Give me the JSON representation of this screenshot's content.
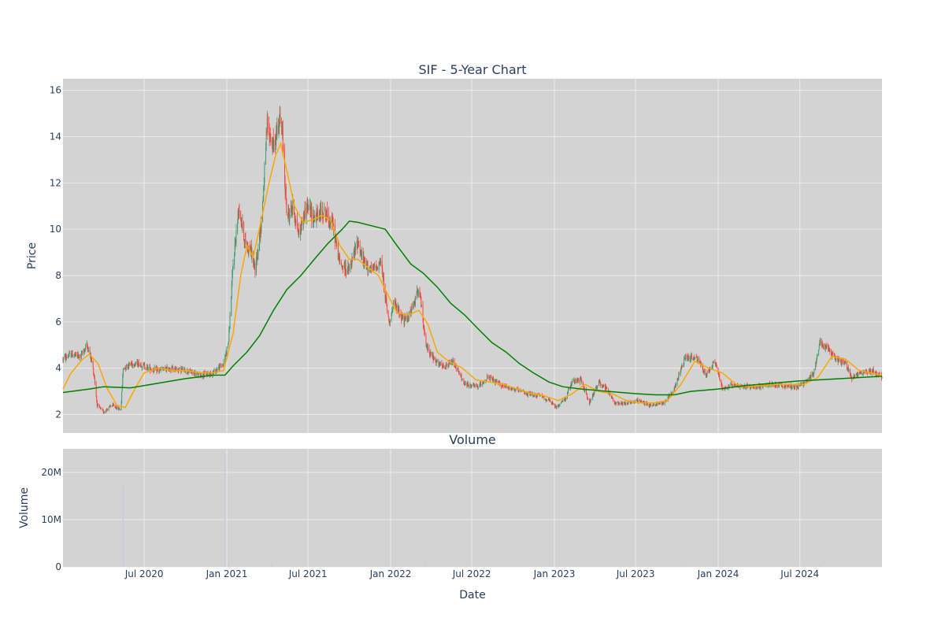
{
  "colors": {
    "plot_bg": "#d3d3d3",
    "grid": "#ebebeb",
    "text": "#2a3f5f",
    "candle_up": "#3d9970",
    "candle_down": "#ff4136",
    "ma_short": "#ffa500",
    "ma_long": "#008000",
    "volume_bar": "#c8c8e0"
  },
  "chart_data": [
    {
      "type": "candlestick",
      "title": "SIF - 5-Year Chart",
      "xlabel": "",
      "ylabel": "Price",
      "xlim": [
        "2020-01-02",
        "2024-12-31"
      ],
      "ylim": [
        1.2,
        16.5
      ],
      "yticks": [
        2,
        4,
        6,
        8,
        10,
        12,
        14,
        16
      ],
      "grid": true,
      "legend": "none",
      "price_path": [
        [
          "2020-01-02",
          4.4
        ],
        [
          "2020-01-20",
          4.6
        ],
        [
          "2020-02-10",
          4.5
        ],
        [
          "2020-02-24",
          5.0
        ],
        [
          "2020-03-05",
          4.4
        ],
        [
          "2020-03-12",
          3.6
        ],
        [
          "2020-03-18",
          2.4
        ],
        [
          "2020-04-01",
          2.1
        ],
        [
          "2020-04-20",
          2.4
        ],
        [
          "2020-05-10",
          2.2
        ],
        [
          "2020-05-15",
          4.0
        ],
        [
          "2020-06-01",
          4.2
        ],
        [
          "2020-06-20",
          4.2
        ],
        [
          "2020-07-10",
          4.0
        ],
        [
          "2020-08-01",
          3.9
        ],
        [
          "2020-09-01",
          4.0
        ],
        [
          "2020-10-01",
          3.9
        ],
        [
          "2020-11-01",
          3.7
        ],
        [
          "2020-12-01",
          3.8
        ],
        [
          "2020-12-25",
          4.2
        ],
        [
          "2021-01-05",
          5.2
        ],
        [
          "2021-01-15",
          8.5
        ],
        [
          "2021-01-28",
          11.0
        ],
        [
          "2021-02-10",
          9.5
        ],
        [
          "2021-02-25",
          9.0
        ],
        [
          "2021-03-05",
          8.2
        ],
        [
          "2021-03-20",
          10.5
        ],
        [
          "2021-04-01",
          14.5
        ],
        [
          "2021-04-15",
          13.5
        ],
        [
          "2021-04-28",
          14.8
        ],
        [
          "2021-05-05",
          14.0
        ],
        [
          "2021-05-15",
          10.5
        ],
        [
          "2021-05-28",
          11.0
        ],
        [
          "2021-06-10",
          9.8
        ],
        [
          "2021-06-28",
          11.0
        ],
        [
          "2021-07-15",
          10.5
        ],
        [
          "2021-08-05",
          10.8
        ],
        [
          "2021-08-25",
          10.2
        ],
        [
          "2021-09-10",
          8.5
        ],
        [
          "2021-10-01",
          8.2
        ],
        [
          "2021-10-20",
          9.5
        ],
        [
          "2021-11-01",
          8.6
        ],
        [
          "2021-11-20",
          8.2
        ],
        [
          "2021-12-10",
          8.6
        ],
        [
          "2021-12-28",
          6.0
        ],
        [
          "2022-01-10",
          6.8
        ],
        [
          "2022-02-01",
          6.0
        ],
        [
          "2022-02-20",
          6.6
        ],
        [
          "2022-03-05",
          7.6
        ],
        [
          "2022-03-20",
          5.0
        ],
        [
          "2022-04-10",
          4.3
        ],
        [
          "2022-05-01",
          4.0
        ],
        [
          "2022-05-20",
          4.3
        ],
        [
          "2022-06-15",
          3.3
        ],
        [
          "2022-07-15",
          3.2
        ],
        [
          "2022-08-05",
          3.6
        ],
        [
          "2022-09-01",
          3.3
        ],
        [
          "2022-10-01",
          3.1
        ],
        [
          "2022-11-01",
          2.9
        ],
        [
          "2022-12-01",
          2.8
        ],
        [
          "2022-12-20",
          2.6
        ],
        [
          "2023-01-05",
          2.3
        ],
        [
          "2023-01-25",
          2.7
        ],
        [
          "2023-02-10",
          3.4
        ],
        [
          "2023-03-01",
          3.5
        ],
        [
          "2023-03-20",
          2.5
        ],
        [
          "2023-04-10",
          3.4
        ],
        [
          "2023-04-28",
          3.1
        ],
        [
          "2023-05-15",
          2.5
        ],
        [
          "2023-06-10",
          2.5
        ],
        [
          "2023-07-10",
          2.6
        ],
        [
          "2023-08-01",
          2.4
        ],
        [
          "2023-09-01",
          2.5
        ],
        [
          "2023-09-25",
          3.1
        ],
        [
          "2023-10-20",
          4.5
        ],
        [
          "2023-11-15",
          4.4
        ],
        [
          "2023-12-05",
          3.7
        ],
        [
          "2023-12-25",
          4.3
        ],
        [
          "2024-01-10",
          3.1
        ],
        [
          "2024-02-01",
          3.3
        ],
        [
          "2024-03-01",
          3.2
        ],
        [
          "2024-04-01",
          3.2
        ],
        [
          "2024-05-01",
          3.3
        ],
        [
          "2024-06-01",
          3.2
        ],
        [
          "2024-06-25",
          3.2
        ],
        [
          "2024-07-15",
          3.4
        ],
        [
          "2024-08-01",
          3.8
        ],
        [
          "2024-08-15",
          5.2
        ],
        [
          "2024-09-01",
          4.8
        ],
        [
          "2024-09-20",
          4.4
        ],
        [
          "2024-10-10",
          4.2
        ],
        [
          "2024-10-25",
          3.6
        ],
        [
          "2024-11-15",
          3.8
        ],
        [
          "2024-12-10",
          3.9
        ],
        [
          "2024-12-31",
          3.6
        ]
      ],
      "ma_short": [
        [
          "2020-01-02",
          3.1
        ],
        [
          "2020-01-20",
          3.8
        ],
        [
          "2020-02-15",
          4.4
        ],
        [
          "2020-03-01",
          4.6
        ],
        [
          "2020-03-20",
          4.2
        ],
        [
          "2020-04-10",
          3.1
        ],
        [
          "2020-05-01",
          2.4
        ],
        [
          "2020-05-20",
          2.3
        ],
        [
          "2020-06-10",
          3.1
        ],
        [
          "2020-07-01",
          3.8
        ],
        [
          "2020-08-01",
          4.0
        ],
        [
          "2020-09-01",
          3.9
        ],
        [
          "2020-10-01",
          3.9
        ],
        [
          "2020-11-01",
          3.8
        ],
        [
          "2020-12-01",
          3.8
        ],
        [
          "2020-12-25",
          3.9
        ],
        [
          "2021-01-15",
          5.5
        ],
        [
          "2021-02-01",
          8.0
        ],
        [
          "2021-02-15",
          9.3
        ],
        [
          "2021-03-01",
          8.8
        ],
        [
          "2021-03-20",
          10.5
        ],
        [
          "2021-04-05",
          12.0
        ],
        [
          "2021-04-20",
          13.2
        ],
        [
          "2021-05-01",
          13.7
        ],
        [
          "2021-05-15",
          12.5
        ],
        [
          "2021-06-01",
          11.0
        ],
        [
          "2021-06-20",
          10.3
        ],
        [
          "2021-07-10",
          10.4
        ],
        [
          "2021-08-01",
          10.6
        ],
        [
          "2021-08-20",
          10.4
        ],
        [
          "2021-09-10",
          9.3
        ],
        [
          "2021-10-01",
          8.7
        ],
        [
          "2021-10-20",
          8.7
        ],
        [
          "2021-11-15",
          8.3
        ],
        [
          "2021-12-05",
          8.0
        ],
        [
          "2021-12-25",
          7.2
        ],
        [
          "2022-01-15",
          6.4
        ],
        [
          "2022-02-10",
          6.3
        ],
        [
          "2022-03-05",
          6.5
        ],
        [
          "2022-03-25",
          5.9
        ],
        [
          "2022-04-15",
          4.7
        ],
        [
          "2022-05-10",
          4.3
        ],
        [
          "2022-06-10",
          4.0
        ],
        [
          "2022-07-10",
          3.5
        ],
        [
          "2022-08-10",
          3.4
        ],
        [
          "2022-09-10",
          3.3
        ],
        [
          "2022-10-10",
          3.1
        ],
        [
          "2022-11-10",
          2.9
        ],
        [
          "2022-12-10",
          2.8
        ],
        [
          "2023-01-10",
          2.6
        ],
        [
          "2023-02-10",
          2.9
        ],
        [
          "2023-03-10",
          3.3
        ],
        [
          "2023-04-10",
          3.0
        ],
        [
          "2023-05-10",
          2.9
        ],
        [
          "2023-06-10",
          2.6
        ],
        [
          "2023-07-10",
          2.5
        ],
        [
          "2023-08-10",
          2.5
        ],
        [
          "2023-09-10",
          2.6
        ],
        [
          "2023-10-10",
          3.3
        ],
        [
          "2023-11-10",
          4.3
        ],
        [
          "2023-12-10",
          4.0
        ],
        [
          "2024-01-10",
          3.8
        ],
        [
          "2024-02-10",
          3.3
        ],
        [
          "2024-03-10",
          3.2
        ],
        [
          "2024-05-10",
          3.3
        ],
        [
          "2024-07-10",
          3.3
        ],
        [
          "2024-08-10",
          3.6
        ],
        [
          "2024-09-10",
          4.5
        ],
        [
          "2024-10-10",
          4.4
        ],
        [
          "2024-11-10",
          3.9
        ],
        [
          "2024-12-31",
          3.7
        ]
      ],
      "ma_long": [
        [
          "2020-01-02",
          2.95
        ],
        [
          "2020-03-01",
          3.1
        ],
        [
          "2020-04-01",
          3.2
        ],
        [
          "2020-06-01",
          3.15
        ],
        [
          "2020-08-01",
          3.35
        ],
        [
          "2020-10-01",
          3.55
        ],
        [
          "2020-12-01",
          3.7
        ],
        [
          "2020-12-28",
          3.7
        ],
        [
          "2021-01-15",
          4.1
        ],
        [
          "2021-02-15",
          4.7
        ],
        [
          "2021-03-15",
          5.4
        ],
        [
          "2021-04-15",
          6.5
        ],
        [
          "2021-05-15",
          7.4
        ],
        [
          "2021-06-15",
          8.0
        ],
        [
          "2021-07-15",
          8.7
        ],
        [
          "2021-08-15",
          9.4
        ],
        [
          "2021-09-15",
          10.0
        ],
        [
          "2021-10-01",
          10.35
        ],
        [
          "2021-10-20",
          10.3
        ],
        [
          "2021-11-20",
          10.15
        ],
        [
          "2021-12-20",
          10.0
        ],
        [
          "2022-01-15",
          9.3
        ],
        [
          "2022-02-15",
          8.5
        ],
        [
          "2022-03-15",
          8.1
        ],
        [
          "2022-04-15",
          7.5
        ],
        [
          "2022-05-15",
          6.8
        ],
        [
          "2022-06-15",
          6.3
        ],
        [
          "2022-07-15",
          5.7
        ],
        [
          "2022-08-15",
          5.1
        ],
        [
          "2022-09-15",
          4.7
        ],
        [
          "2022-10-15",
          4.2
        ],
        [
          "2022-11-15",
          3.8
        ],
        [
          "2022-12-20",
          3.4
        ],
        [
          "2023-01-20",
          3.2
        ],
        [
          "2023-03-01",
          3.1
        ],
        [
          "2023-05-01",
          3.0
        ],
        [
          "2023-07-01",
          2.9
        ],
        [
          "2023-08-15",
          2.85
        ],
        [
          "2023-09-25",
          2.85
        ],
        [
          "2023-11-01",
          3.0
        ],
        [
          "2024-01-01",
          3.1
        ],
        [
          "2024-03-01",
          3.25
        ],
        [
          "2024-05-01",
          3.35
        ],
        [
          "2024-07-01",
          3.45
        ],
        [
          "2024-08-15",
          3.5
        ],
        [
          "2024-10-01",
          3.55
        ],
        [
          "2024-12-31",
          3.65
        ]
      ]
    },
    {
      "type": "bar",
      "title": "Volume",
      "xlabel": "Date",
      "ylabel": "Volume",
      "xlim": [
        "2020-01-02",
        "2024-12-31"
      ],
      "ylim": [
        0,
        25000000
      ],
      "yticks": [
        0,
        10000000,
        20000000
      ],
      "ytick_labels": [
        "0",
        "10M",
        "20M"
      ],
      "xticks": [
        "2020-07-01",
        "2021-01-01",
        "2021-07-01",
        "2022-01-01",
        "2022-07-01",
        "2023-01-01",
        "2023-07-01",
        "2024-01-01",
        "2024-07-01"
      ],
      "xtick_labels": [
        "Jul 2020",
        "Jan 2021",
        "Jul 2021",
        "Jan 2022",
        "Jul 2022",
        "Jan 2023",
        "Jul 2023",
        "Jan 2024",
        "Jul 2024"
      ],
      "grid": true,
      "spikes": [
        [
          "2020-05-15",
          17500000
        ],
        [
          "2020-12-28",
          24000000
        ],
        [
          "2021-01-05",
          1000000
        ],
        [
          "2021-04-10",
          400000
        ],
        [
          "2022-03-20",
          300000
        ],
        [
          "2023-10-20",
          250000
        ],
        [
          "2024-08-15",
          350000
        ]
      ],
      "baseline_volume": 60000
    }
  ]
}
